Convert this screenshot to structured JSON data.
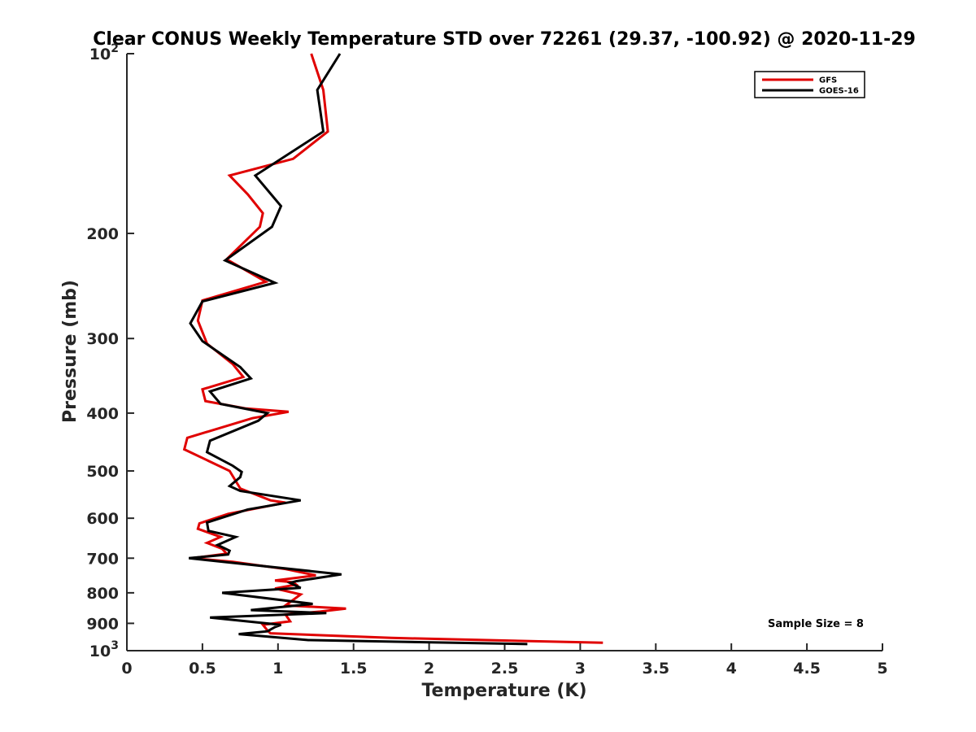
{
  "chart_data": {
    "type": "line",
    "title": "Clear CONUS Weekly Temperature STD over 72261 (29.37, -100.92) @ 2020-11-29",
    "xlabel": "Temperature (K)",
    "ylabel": "Pressure (mb)",
    "xlim": [
      0,
      5
    ],
    "ylim": [
      100,
      1000
    ],
    "y_scale": "log",
    "y_reversed": true,
    "x_ticks": [
      "0",
      "0.5",
      "1",
      "1.5",
      "2",
      "2.5",
      "3",
      "3.5",
      "4",
      "4.5",
      "5"
    ],
    "y_ticks": [
      {
        "value": 100,
        "base": "10",
        "exp": "2"
      },
      {
        "value": 200,
        "label": "200"
      },
      {
        "value": 300,
        "label": "300"
      },
      {
        "value": 400,
        "label": "400"
      },
      {
        "value": 500,
        "label": "500"
      },
      {
        "value": 600,
        "label": "600"
      },
      {
        "value": 700,
        "label": "700"
      },
      {
        "value": 800,
        "label": "800"
      },
      {
        "value": 900,
        "label": "900"
      },
      {
        "value": 1000,
        "base": "10",
        "exp": "3"
      }
    ],
    "grid": false,
    "legend": "top-right",
    "annotation": "Sample Size = 8",
    "series": [
      {
        "name": "GFS",
        "color": "#e00000",
        "points": [
          [
            1.22,
            100
          ],
          [
            1.3,
            115
          ],
          [
            1.33,
            135
          ],
          [
            1.1,
            150
          ],
          [
            0.68,
            160
          ],
          [
            0.8,
            172
          ],
          [
            0.9,
            185
          ],
          [
            0.88,
            195
          ],
          [
            0.66,
            221
          ],
          [
            0.92,
            241
          ],
          [
            0.5,
            259
          ],
          [
            0.47,
            280
          ],
          [
            0.53,
            306
          ],
          [
            0.7,
            331
          ],
          [
            0.77,
            348
          ],
          [
            0.5,
            365
          ],
          [
            0.52,
            382
          ],
          [
            0.79,
            393
          ],
          [
            1.07,
            398
          ],
          [
            0.83,
            408
          ],
          [
            0.4,
            440
          ],
          [
            0.38,
            460
          ],
          [
            0.68,
            500
          ],
          [
            0.75,
            535
          ],
          [
            0.95,
            560
          ],
          [
            1.05,
            565
          ],
          [
            0.67,
            590
          ],
          [
            0.48,
            612
          ],
          [
            0.47,
            625
          ],
          [
            0.62,
            645
          ],
          [
            0.53,
            660
          ],
          [
            0.63,
            675
          ],
          [
            0.66,
            688
          ],
          [
            0.43,
            700
          ],
          [
            0.7,
            710
          ],
          [
            1.05,
            730
          ],
          [
            1.25,
            748
          ],
          [
            0.98,
            763
          ],
          [
            1.1,
            768
          ],
          [
            1.12,
            775
          ],
          [
            0.98,
            787
          ],
          [
            1.15,
            805
          ],
          [
            1.05,
            840
          ],
          [
            1.45,
            850
          ],
          [
            1.28,
            860
          ],
          [
            1.05,
            870
          ],
          [
            1.08,
            893
          ],
          [
            0.9,
            905
          ],
          [
            0.93,
            925
          ],
          [
            0.95,
            935
          ],
          [
            1.75,
            952
          ],
          [
            3.15,
            970
          ]
        ]
      },
      {
        "name": "GOES-16",
        "color": "#000000",
        "points": [
          [
            1.41,
            100
          ],
          [
            1.26,
            115
          ],
          [
            1.3,
            135
          ],
          [
            0.85,
            160
          ],
          [
            1.02,
            180
          ],
          [
            0.96,
            195
          ],
          [
            0.65,
            222
          ],
          [
            0.98,
            242
          ],
          [
            0.5,
            260
          ],
          [
            0.42,
            283
          ],
          [
            0.5,
            303
          ],
          [
            0.75,
            335
          ],
          [
            0.82,
            350
          ],
          [
            0.55,
            368
          ],
          [
            0.62,
            386
          ],
          [
            0.93,
            400
          ],
          [
            0.87,
            412
          ],
          [
            0.55,
            445
          ],
          [
            0.53,
            465
          ],
          [
            0.7,
            490
          ],
          [
            0.76,
            502
          ],
          [
            0.75,
            512
          ],
          [
            0.68,
            530
          ],
          [
            0.75,
            540
          ],
          [
            1.15,
            560
          ],
          [
            0.8,
            580
          ],
          [
            0.53,
            610
          ],
          [
            0.54,
            630
          ],
          [
            0.72,
            645
          ],
          [
            0.6,
            665
          ],
          [
            0.68,
            680
          ],
          [
            0.67,
            690
          ],
          [
            0.41,
            700
          ],
          [
            1.42,
            745
          ],
          [
            1.12,
            765
          ],
          [
            1.08,
            770
          ],
          [
            1.15,
            785
          ],
          [
            0.63,
            800
          ],
          [
            1.23,
            835
          ],
          [
            0.82,
            855
          ],
          [
            1.32,
            865
          ],
          [
            0.55,
            880
          ],
          [
            1.02,
            905
          ],
          [
            0.98,
            913
          ],
          [
            0.93,
            928
          ],
          [
            0.74,
            938
          ],
          [
            1.2,
            960
          ],
          [
            2.65,
            975
          ]
        ]
      }
    ]
  }
}
